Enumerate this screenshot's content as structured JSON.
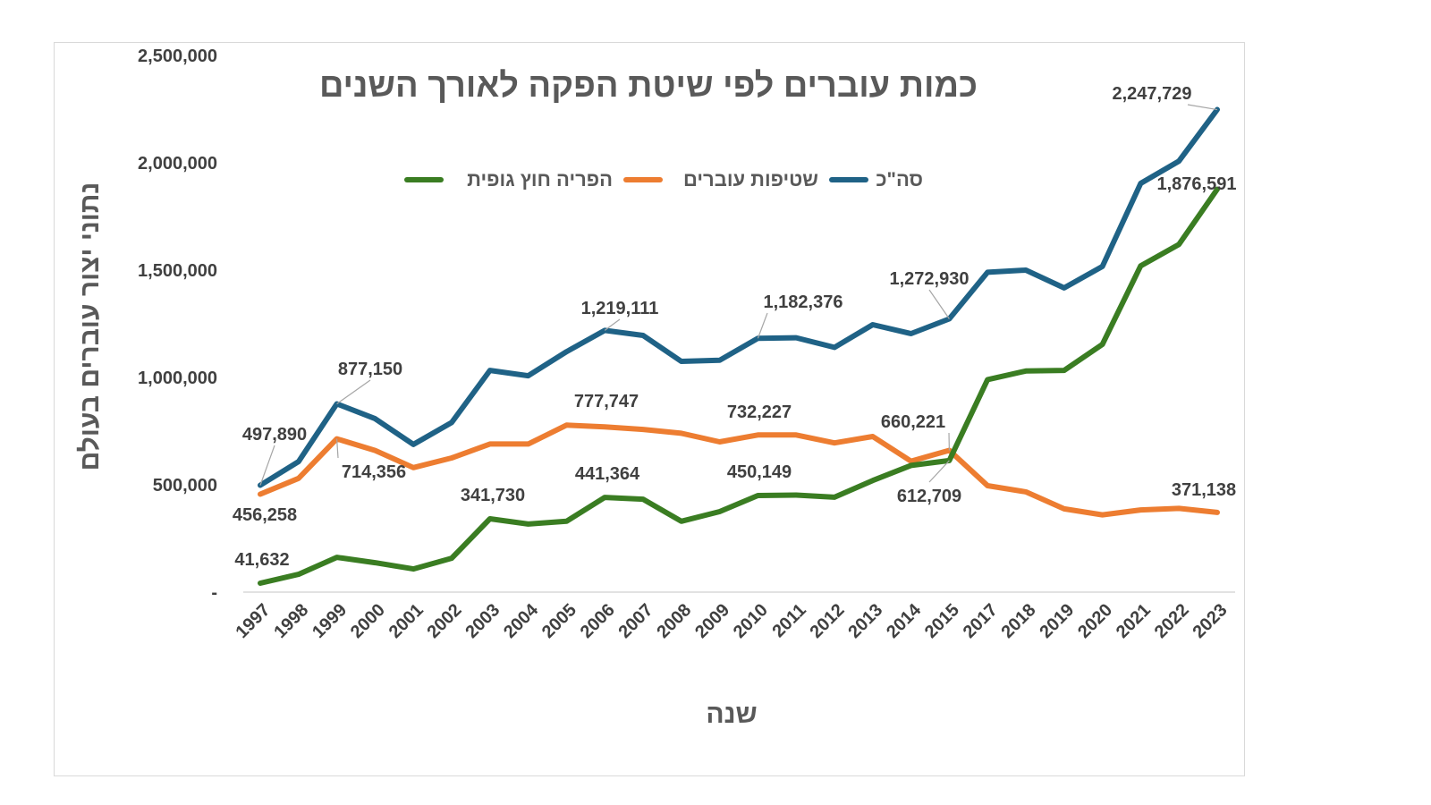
{
  "chart_data": {
    "type": "line",
    "title": "כמות עוברים לפי שיטת הפקה לאורך השנים",
    "xlabel": "שנה",
    "ylabel": "נתוני יצור עוברים בעולם",
    "ylim": [
      0,
      2500000
    ],
    "yticks": [
      "-",
      "500,000",
      "1,000,000",
      "1,500,000",
      "2,000,000",
      "2,500,000"
    ],
    "grid": false,
    "legend_position": "top",
    "categories": [
      "1997",
      "1998",
      "1999",
      "2000",
      "2001",
      "2002",
      "2003",
      "2004",
      "2005",
      "2006",
      "2007",
      "2008",
      "2009",
      "2010",
      "2011",
      "2012",
      "2013",
      "2014",
      "2015",
      "2017",
      "2018",
      "2019",
      "2020",
      "2021",
      "2022",
      "2023"
    ],
    "series": [
      {
        "name": "סה\"כ",
        "color": "#1F6286",
        "values": [
          497890,
          608000,
          877150,
          808000,
          688000,
          790000,
          1033000,
          1008000,
          1120000,
          1219111,
          1196000,
          1075000,
          1080000,
          1182376,
          1185000,
          1140000,
          1246000,
          1204000,
          1272930,
          1490000,
          1500000,
          1417000,
          1517000,
          1904000,
          2008000,
          2247729
        ],
        "labels": {
          "0": "497,890",
          "2": "877,150",
          "9": "1,219,111",
          "13": "1,182,376",
          "18": "1,272,930",
          "25": "2,247,729"
        }
      },
      {
        "name": "שטיפות עוברים",
        "color": "#ED7D31",
        "values": [
          456258,
          530000,
          714356,
          660000,
          580000,
          625000,
          690000,
          690000,
          777747,
          770000,
          758000,
          740000,
          700000,
          732227,
          732000,
          695000,
          725000,
          610000,
          660221,
          496000,
          467000,
          388000,
          360000,
          383000,
          390000,
          371138
        ],
        "labels": {
          "0": "456,258",
          "2": "714,356",
          "8": "777,747",
          "13": "732,227",
          "18": "660,221",
          "25": "371,138"
        }
      },
      {
        "name": "הפריה חוץ גופית",
        "color": "#3A7D22",
        "values": [
          41632,
          83000,
          162000,
          137000,
          108000,
          158000,
          341730,
          317000,
          330000,
          441364,
          433000,
          330000,
          375000,
          450149,
          452000,
          442000,
          520000,
          590000,
          612709,
          990000,
          1030000,
          1033000,
          1154000,
          1520000,
          1620000,
          1876591
        ],
        "labels": {
          "0": "41,632",
          "6": "341,730",
          "9": "441,364",
          "13": "450,149",
          "18": "612,709",
          "25": "1,876,591"
        }
      }
    ]
  }
}
